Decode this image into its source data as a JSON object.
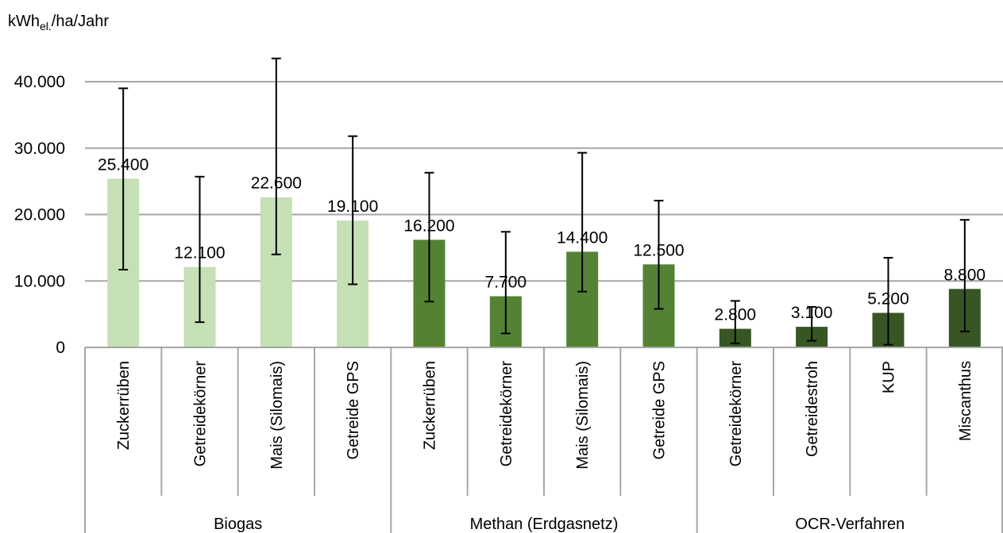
{
  "chart_data": {
    "type": "bar",
    "ylabel": {
      "main": "kWh",
      "sub": "el.",
      "rest": "/ha/Jahr"
    },
    "ylim": [
      0,
      40000
    ],
    "yticks": [
      "0",
      "10.000",
      "20.000",
      "30.000",
      "40.000"
    ],
    "ytick_values": [
      0,
      10000,
      20000,
      30000,
      40000
    ],
    "grid": true,
    "groups": [
      {
        "name": "Biogas",
        "color": "#c5e0b4",
        "categories": [
          "Zuckerrüben",
          "Getreidekörner",
          "Mais (Silomais)",
          "Getreide GPS"
        ],
        "values": [
          25400,
          12100,
          22600,
          19100
        ],
        "labels": [
          "25.400",
          "12.100",
          "22.600",
          "19.100"
        ],
        "err_low": [
          11700,
          3800,
          14000,
          9500
        ],
        "err_high": [
          39000,
          25700,
          43500,
          31800
        ]
      },
      {
        "name": "Methan (Erdgasnetz)",
        "color": "#548235",
        "categories": [
          "Zuckerrüben",
          "Getreidekörner",
          "Mais (Silomais)",
          "Getreide GPS"
        ],
        "values": [
          16200,
          7700,
          14400,
          12500
        ],
        "labels": [
          "16.200",
          "7.700",
          "14.400",
          "12.500"
        ],
        "err_low": [
          6900,
          2100,
          8400,
          5800
        ],
        "err_high": [
          26300,
          17400,
          29300,
          22100
        ]
      },
      {
        "name": "OCR-Verfahren",
        "color": "#375623",
        "categories": [
          "Getreidekörner",
          "Getreidestroh",
          "KUP",
          "Miscanthus"
        ],
        "values": [
          2800,
          3100,
          5200,
          8800
        ],
        "labels": [
          "2.800",
          "3.100",
          "5.200",
          "8.800"
        ],
        "err_low": [
          600,
          1000,
          400,
          2400
        ],
        "err_high": [
          7000,
          6100,
          13500,
          19200
        ]
      }
    ]
  }
}
